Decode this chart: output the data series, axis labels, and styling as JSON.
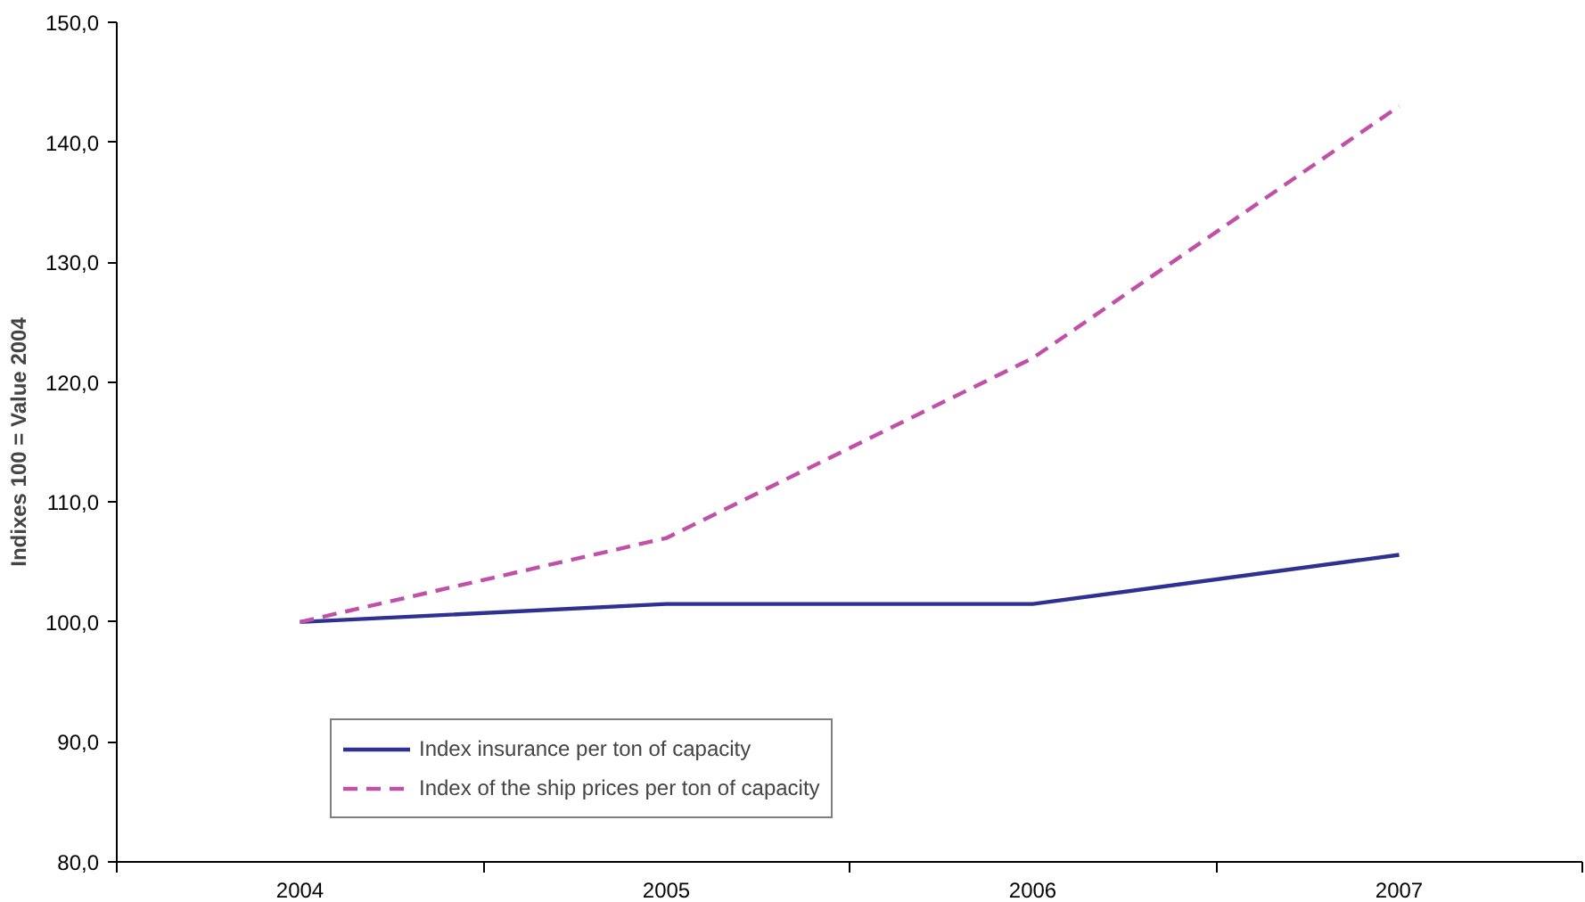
{
  "chart_data": {
    "type": "line",
    "ylabel": "Indixes 100 = Value 2004",
    "categories": [
      "2004",
      "2005",
      "2006",
      "2007"
    ],
    "series": [
      {
        "name": "Index insurance per ton of capacity",
        "color": "#2e3192",
        "values": [
          100,
          101.5,
          101.5,
          105.6
        ],
        "line_style": "solid"
      },
      {
        "name": "Index of the ship prices per ton of capacity",
        "color": "#c050a8",
        "values": [
          100,
          107,
          122,
          143
        ],
        "line_style": "dashed"
      }
    ],
    "ylim": [
      80,
      150
    ],
    "yticks": [
      {
        "value": 80,
        "label": "80,0"
      },
      {
        "value": 90,
        "label": "90,0"
      },
      {
        "value": 100,
        "label": "100,0"
      },
      {
        "value": 110,
        "label": "110,0"
      },
      {
        "value": 120,
        "label": "120,0"
      },
      {
        "value": 130,
        "label": "130,0"
      },
      {
        "value": 140,
        "label": "140,0"
      },
      {
        "value": 150,
        "label": "150,0"
      }
    ],
    "grid": false,
    "legend": "bottom left",
    "marker": "none"
  }
}
